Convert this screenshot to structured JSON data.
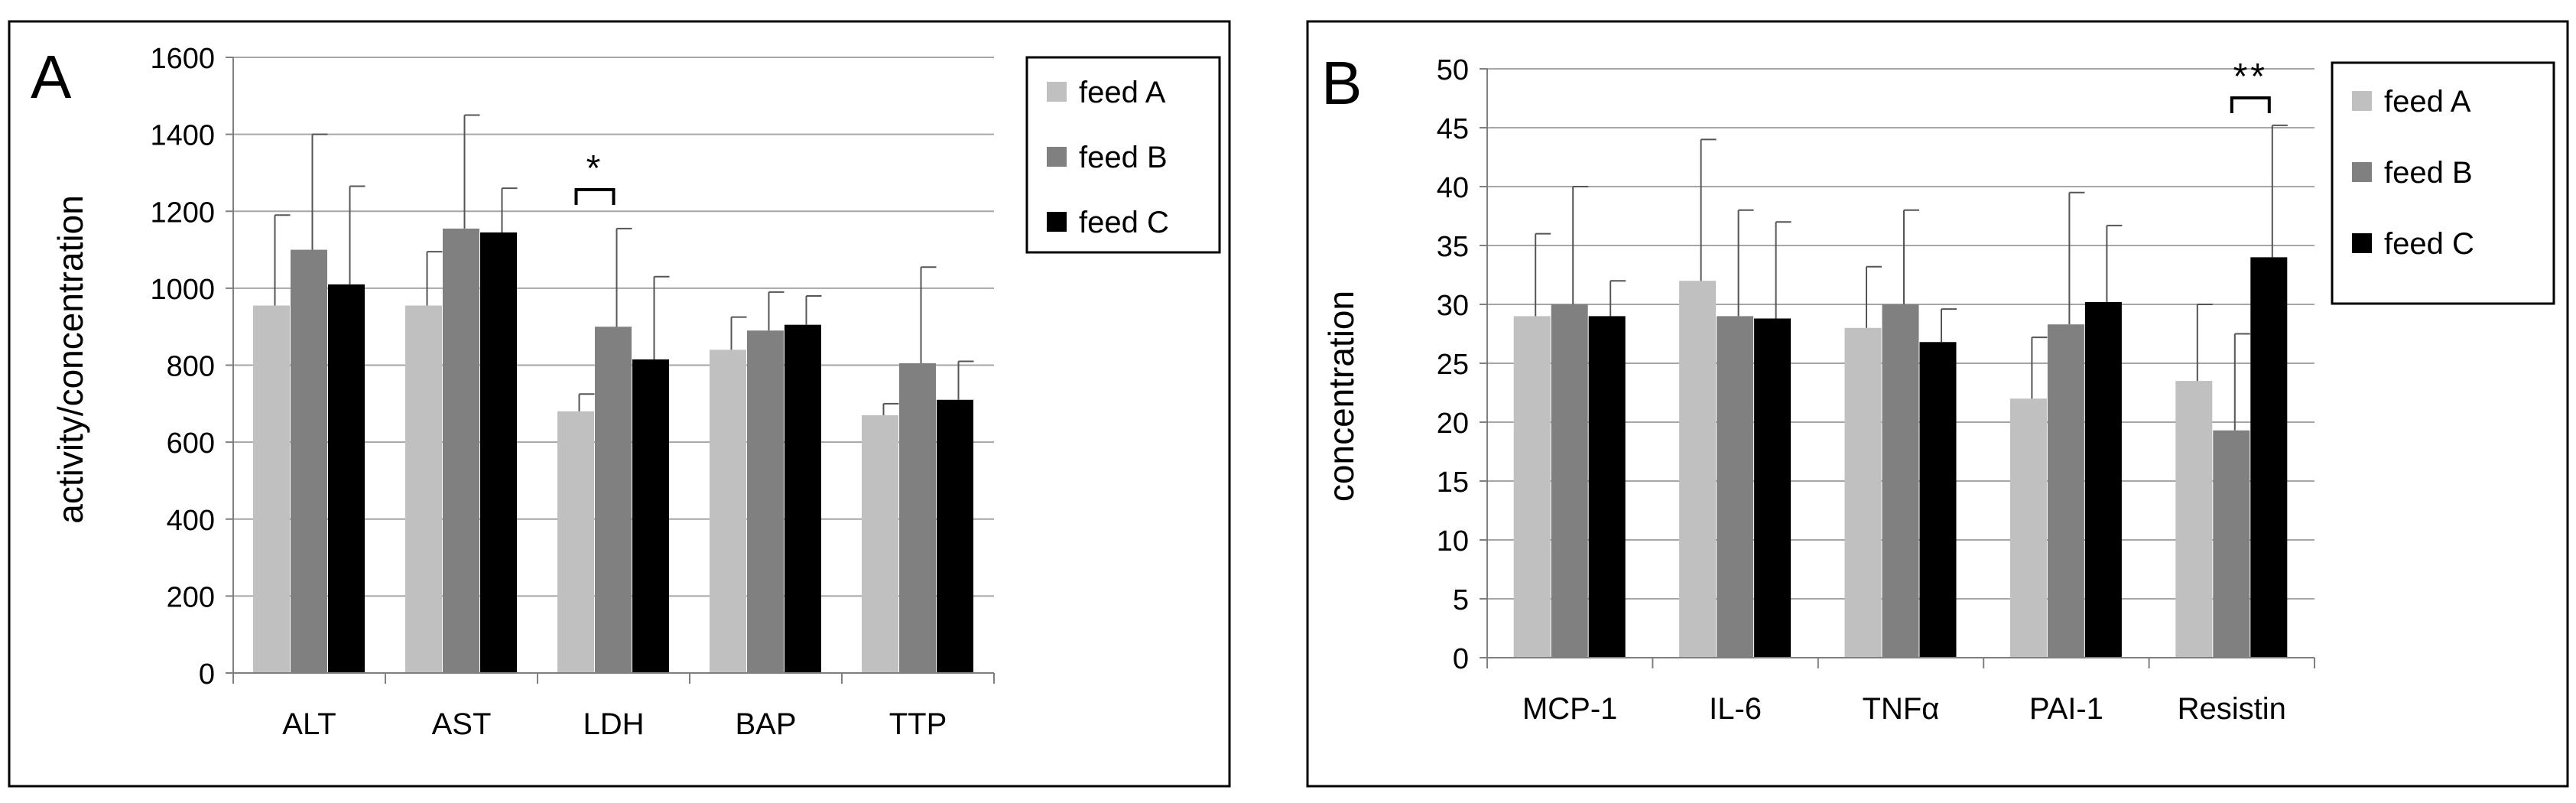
{
  "colors": {
    "feed_a": "#c0c0c0",
    "feed_b": "#808080",
    "feed_c": "#000000",
    "grid": "#a6a6a6",
    "axis": "#7f7f7f",
    "error_bar": "#555555"
  },
  "chart_data": [
    {
      "type": "bar",
      "panel_letter": "A",
      "ylabel": "activity/concentration",
      "xlabel": "",
      "ylim": [
        0,
        1600
      ],
      "yticks": [
        0,
        200,
        400,
        600,
        800,
        1000,
        1200,
        1400,
        1600
      ],
      "grid": true,
      "legend_position": "top-right",
      "categories": [
        "ALT",
        "AST",
        "LDH",
        "BAP",
        "TTP"
      ],
      "series": [
        {
          "name": "feed A",
          "color_key": "feed_a",
          "values": [
            955,
            955,
            680,
            840,
            670
          ],
          "errors": [
            235,
            140,
            45,
            85,
            30
          ]
        },
        {
          "name": "feed B",
          "color_key": "feed_b",
          "values": [
            1100,
            1155,
            900,
            890,
            805
          ],
          "errors": [
            300,
            295,
            255,
            100,
            250
          ]
        },
        {
          "name": "feed C",
          "color_key": "feed_c",
          "values": [
            1010,
            1145,
            815,
            905,
            710
          ],
          "errors": [
            255,
            115,
            215,
            75,
            100
          ]
        }
      ],
      "significance": [
        {
          "category_index": 2,
          "from_series": 0,
          "to_series": 1,
          "label": "*"
        }
      ]
    },
    {
      "type": "bar",
      "panel_letter": "B",
      "ylabel": "concentration",
      "xlabel": "",
      "ylim": [
        0,
        50
      ],
      "yticks": [
        0,
        5,
        10,
        15,
        20,
        25,
        30,
        35,
        40,
        45,
        50
      ],
      "grid": true,
      "legend_position": "top-right",
      "categories": [
        "MCP-1",
        "IL-6",
        "TNFα",
        "PAI-1",
        "Resistin"
      ],
      "series": [
        {
          "name": "feed A",
          "color_key": "feed_a",
          "values": [
            29,
            32,
            28,
            22,
            23.5
          ],
          "errors": [
            7,
            12,
            5.2,
            5.2,
            6.5
          ]
        },
        {
          "name": "feed B",
          "color_key": "feed_b",
          "values": [
            30,
            29,
            30,
            28.3,
            19.3
          ],
          "errors": [
            10,
            9,
            8,
            11.2,
            8.2
          ]
        },
        {
          "name": "feed C",
          "color_key": "feed_c",
          "values": [
            29,
            28.8,
            26.8,
            30.2,
            34
          ],
          "errors": [
            3,
            8.2,
            2.8,
            6.5,
            11.2
          ]
        }
      ],
      "significance": [
        {
          "category_index": 4,
          "from_series": 1,
          "to_series": 2,
          "label": "**"
        }
      ]
    }
  ]
}
